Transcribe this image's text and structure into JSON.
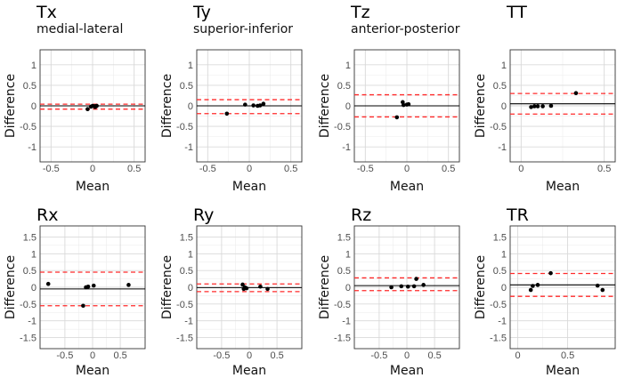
{
  "figure": {
    "x_axis_label": "Mean",
    "y_axis_label": "Difference",
    "colors": {
      "points": "#000000",
      "mean_line": "#000000",
      "limits_of_agreement": "#ff2a2a",
      "grid": "#d9d9d9"
    }
  },
  "chart_data": [
    {
      "id": "tx",
      "type": "scatter",
      "title": "Tx",
      "subtitle": "medial-lateral",
      "xlim": [
        -0.6,
        0.6
      ],
      "ylim": [
        -1.3,
        1.3
      ],
      "xticks": [
        -0.5,
        0,
        0.5
      ],
      "xtick_labels": [
        "-0.5",
        "0",
        "0.5"
      ],
      "yticks": [
        -1,
        -0.5,
        0,
        0.5,
        1
      ],
      "ytick_labels": [
        "-1",
        "-0.5",
        "0",
        "0.5",
        "1"
      ],
      "mean_diff": 0.0,
      "loa": [
        -0.08,
        0.04
      ],
      "points": [
        [
          -0.06,
          -0.08
        ],
        [
          -0.02,
          -0.02
        ],
        [
          0.0,
          0.0
        ],
        [
          0.02,
          -0.01
        ],
        [
          0.03,
          -0.03
        ],
        [
          0.04,
          -0.01
        ],
        [
          0.05,
          0.0
        ]
      ]
    },
    {
      "id": "ty",
      "type": "scatter",
      "title": "Ty",
      "subtitle": "superior-inferior",
      "xlim": [
        -0.6,
        0.6
      ],
      "ylim": [
        -1.3,
        1.3
      ],
      "xticks": [
        -0.5,
        0,
        0.5
      ],
      "xtick_labels": [
        "-0.5",
        "0",
        "0.5"
      ],
      "yticks": [
        -1,
        -0.5,
        0,
        0.5,
        1
      ],
      "ytick_labels": [
        "-1",
        "-0.5",
        "0",
        "0.5",
        "1"
      ],
      "mean_diff": 0.0,
      "loa": [
        -0.19,
        0.15
      ],
      "points": [
        [
          -0.27,
          -0.19
        ],
        [
          -0.05,
          0.03
        ],
        [
          0.05,
          0.01
        ],
        [
          0.1,
          0.0
        ],
        [
          0.13,
          0.01
        ],
        [
          0.17,
          0.05
        ]
      ]
    },
    {
      "id": "tz",
      "type": "scatter",
      "title": "Tz",
      "subtitle": "anterior-posterior",
      "xlim": [
        -0.6,
        0.6
      ],
      "ylim": [
        -1.3,
        1.3
      ],
      "xticks": [
        -0.5,
        0,
        0.5
      ],
      "xtick_labels": [
        "-0.5",
        "0",
        "0.5"
      ],
      "yticks": [
        -1,
        -0.5,
        0,
        0.5,
        1
      ],
      "ytick_labels": [
        "-1",
        "-0.5",
        "0",
        "0.5",
        "1"
      ],
      "mean_diff": 0.0,
      "loa": [
        -0.27,
        0.27
      ],
      "points": [
        [
          -0.12,
          -0.28
        ],
        [
          -0.05,
          0.09
        ],
        [
          -0.04,
          0.02
        ],
        [
          0.0,
          0.03
        ],
        [
          0.02,
          0.04
        ]
      ]
    },
    {
      "id": "tt",
      "type": "scatter",
      "title": "TT",
      "subtitle": "",
      "xlim": [
        -0.05,
        0.55
      ],
      "ylim": [
        -1.3,
        1.3
      ],
      "xticks": [
        0,
        0.5
      ],
      "xtick_labels": [
        "0",
        "0.5"
      ],
      "yticks": [
        -1,
        -0.5,
        0,
        0.5,
        1
      ],
      "ytick_labels": [
        "-1",
        "-0.5",
        "0",
        "0.5",
        "1"
      ],
      "mean_diff": 0.05,
      "loa": [
        -0.2,
        0.3
      ],
      "points": [
        [
          0.06,
          -0.03
        ],
        [
          0.08,
          -0.01
        ],
        [
          0.1,
          -0.01
        ],
        [
          0.13,
          -0.01
        ],
        [
          0.18,
          0.0
        ],
        [
          0.33,
          0.31
        ]
      ]
    },
    {
      "id": "rx",
      "type": "scatter",
      "title": "Rx",
      "subtitle": "",
      "xlim": [
        -0.9,
        0.9
      ],
      "ylim": [
        -1.75,
        1.75
      ],
      "xticks": [
        -0.5,
        0,
        0.5
      ],
      "xtick_labels": [
        "-0.5",
        "0",
        "0.5"
      ],
      "yticks": [
        -1.5,
        -1,
        -0.5,
        0,
        0.5,
        1,
        1.5
      ],
      "ytick_labels": [
        "-1.5",
        "-1",
        "-0.5",
        "0",
        "0.5",
        "1",
        "1.5"
      ],
      "mean_diff": -0.05,
      "loa": [
        -0.55,
        0.45
      ],
      "points": [
        [
          -0.8,
          0.1
        ],
        [
          -0.17,
          -0.55
        ],
        [
          -0.12,
          0.0
        ],
        [
          -0.08,
          0.02
        ],
        [
          0.02,
          0.05
        ],
        [
          0.65,
          0.07
        ]
      ]
    },
    {
      "id": "ry",
      "type": "scatter",
      "title": "Ry",
      "subtitle": "",
      "xlim": [
        -0.9,
        0.9
      ],
      "ylim": [
        -1.75,
        1.75
      ],
      "xticks": [
        -0.5,
        0,
        0.5
      ],
      "xtick_labels": [
        "-0.5",
        "0",
        "0.5"
      ],
      "yticks": [
        -1.5,
        -1,
        -0.5,
        0,
        0.5,
        1,
        1.5
      ],
      "ytick_labels": [
        "-1.5",
        "-1",
        "-0.5",
        "0",
        "0.5",
        "1",
        "1.5"
      ],
      "mean_diff": -0.01,
      "loa": [
        -0.13,
        0.1
      ],
      "points": [
        [
          -0.12,
          0.08
        ],
        [
          -0.1,
          -0.05
        ],
        [
          -0.08,
          0.0
        ],
        [
          -0.05,
          -0.03
        ],
        [
          0.2,
          0.02
        ],
        [
          0.33,
          -0.05
        ]
      ]
    },
    {
      "id": "rz",
      "type": "scatter",
      "title": "Rz",
      "subtitle": "",
      "xlim": [
        -0.9,
        0.9
      ],
      "ylim": [
        -1.75,
        1.75
      ],
      "xticks": [
        -0.5,
        0,
        0.5
      ],
      "xtick_labels": [
        "-0.5",
        "0",
        "0.5"
      ],
      "yticks": [
        -1.5,
        -1,
        -0.5,
        0,
        0.5,
        1,
        1.5
      ],
      "ytick_labels": [
        "-1.5",
        "-1",
        "-0.5",
        "0",
        "0.5",
        "1",
        "1.5"
      ],
      "mean_diff": 0.05,
      "loa": [
        -0.1,
        0.28
      ],
      "points": [
        [
          -0.28,
          0.0
        ],
        [
          -0.1,
          0.03
        ],
        [
          0.02,
          0.02
        ],
        [
          0.13,
          0.03
        ],
        [
          0.17,
          0.25
        ],
        [
          0.3,
          0.07
        ]
      ]
    },
    {
      "id": "tr",
      "type": "scatter",
      "title": "TR",
      "subtitle": "",
      "xlim": [
        -0.05,
        0.95
      ],
      "ylim": [
        -1.75,
        1.75
      ],
      "xticks": [
        0,
        0.5
      ],
      "xtick_labels": [
        "0",
        "0.5"
      ],
      "yticks": [
        -1.5,
        -1,
        -0.5,
        0,
        0.5,
        1,
        1.5
      ],
      "ytick_labels": [
        "-1.5",
        "-1",
        "-0.5",
        "0",
        "0.5",
        "1",
        "1.5"
      ],
      "mean_diff": 0.07,
      "loa": [
        -0.27,
        0.41
      ],
      "points": [
        [
          0.13,
          -0.08
        ],
        [
          0.15,
          0.04
        ],
        [
          0.2,
          0.07
        ],
        [
          0.33,
          0.42
        ],
        [
          0.8,
          0.05
        ],
        [
          0.85,
          -0.08
        ]
      ]
    }
  ]
}
